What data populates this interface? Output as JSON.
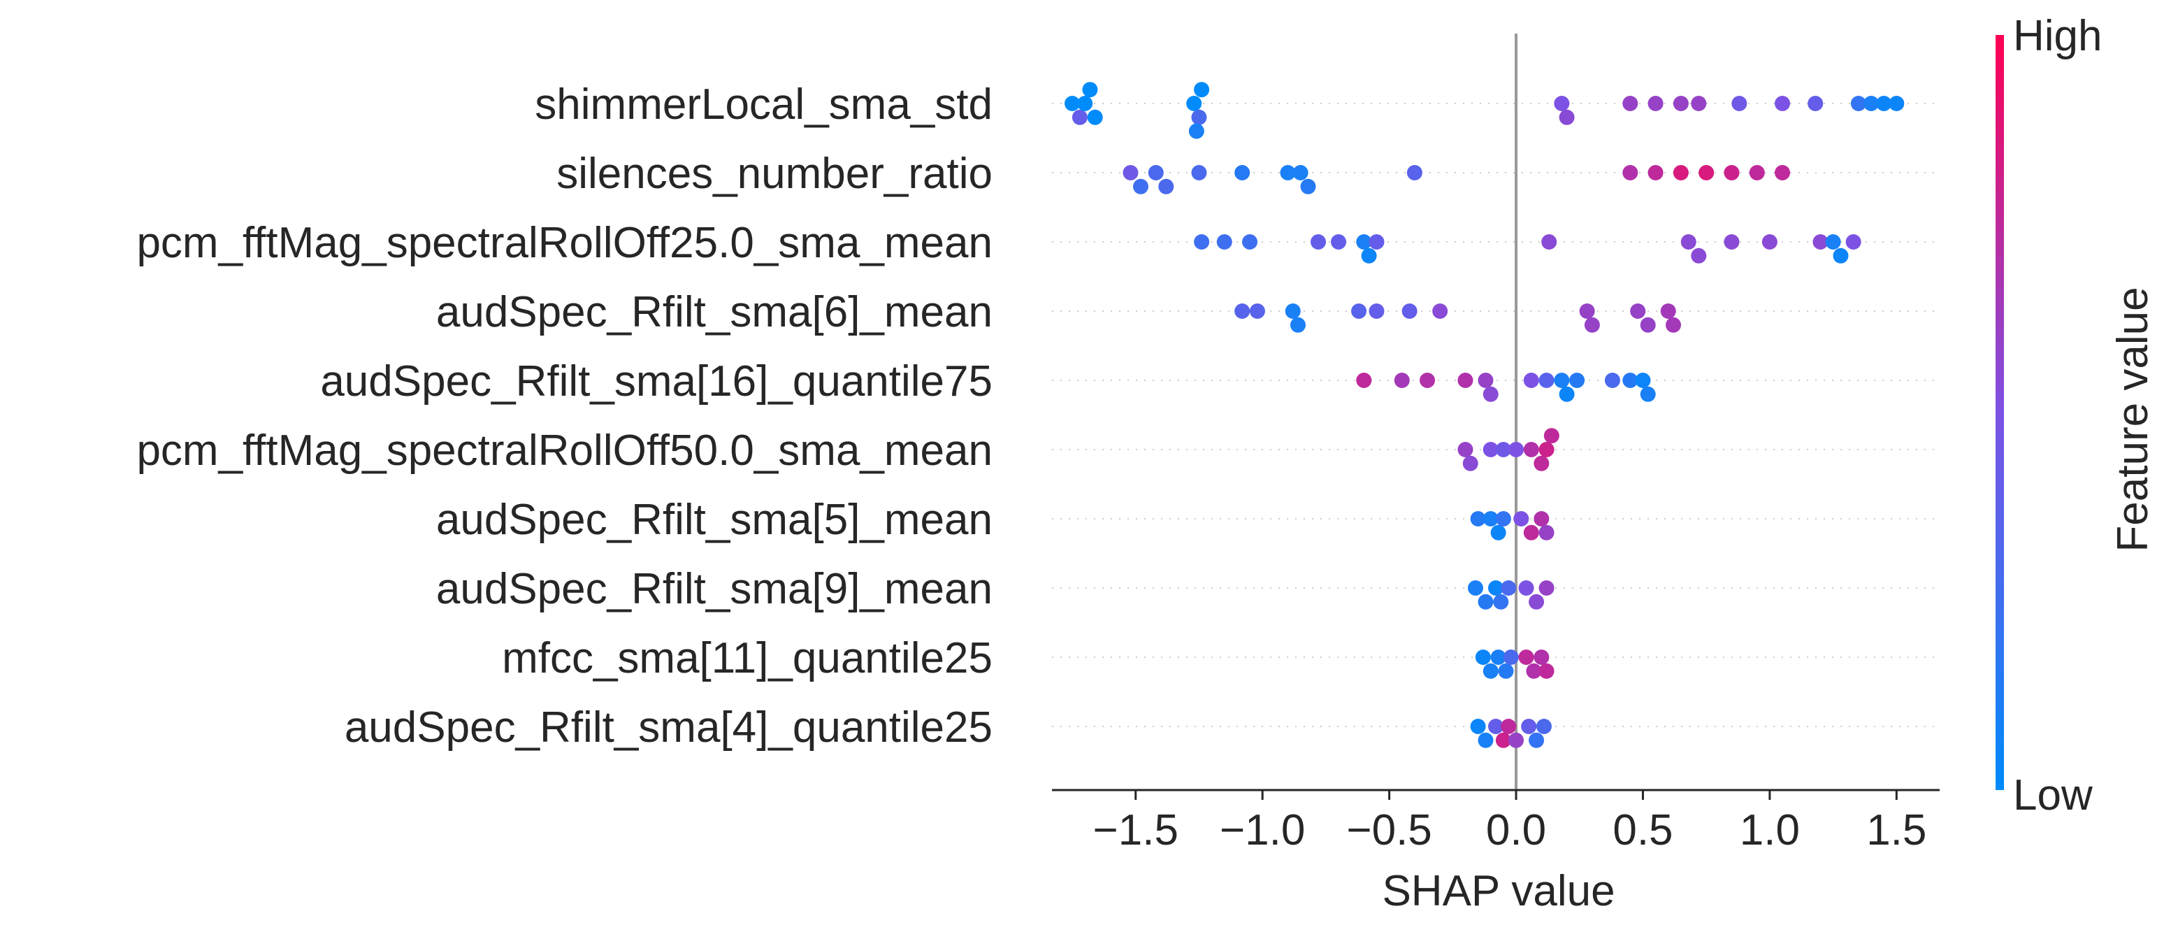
{
  "chart_data": {
    "type": "scatter",
    "subtype": "shap-beeswarm",
    "xlabel": "SHAP value",
    "xlim": [
      -1.83,
      1.67
    ],
    "xticks": [
      -1.5,
      -1.0,
      -0.5,
      0.0,
      0.5,
      1.0,
      1.5
    ],
    "xtick_labels": [
      "−1.5",
      "−1.0",
      "−0.5",
      "0.0",
      "0.5",
      "1.0",
      "1.5"
    ],
    "grid": false,
    "colorbar": {
      "label": "Feature value",
      "high_label": "High",
      "low_label": "Low",
      "high_color": "#ff0052",
      "low_color": "#008bfb"
    },
    "features": [
      {
        "name": "shimmerLocal_sma_std",
        "points": [
          [
            -1.75,
            0.0
          ],
          [
            -1.72,
            0.4
          ],
          [
            -1.7,
            0.0
          ],
          [
            -1.68,
            0.0
          ],
          [
            -1.66,
            0.0
          ],
          [
            -1.27,
            0.0
          ],
          [
            -1.25,
            0.3
          ],
          [
            -1.24,
            0.0
          ],
          [
            -1.26,
            0.1
          ],
          [
            0.18,
            0.5
          ],
          [
            0.2,
            0.55
          ],
          [
            0.45,
            0.6
          ],
          [
            0.55,
            0.6
          ],
          [
            0.65,
            0.6
          ],
          [
            0.72,
            0.6
          ],
          [
            0.88,
            0.45
          ],
          [
            1.05,
            0.5
          ],
          [
            1.18,
            0.4
          ],
          [
            1.35,
            0.2
          ],
          [
            1.4,
            0.1
          ],
          [
            1.45,
            0.05
          ],
          [
            1.5,
            0.05
          ]
        ]
      },
      {
        "name": "silences_number_ratio",
        "points": [
          [
            -1.52,
            0.45
          ],
          [
            -1.48,
            0.25
          ],
          [
            -1.42,
            0.3
          ],
          [
            -1.38,
            0.3
          ],
          [
            -1.25,
            0.3
          ],
          [
            -1.08,
            0.15
          ],
          [
            -0.9,
            0.1
          ],
          [
            -0.85,
            0.1
          ],
          [
            -0.82,
            0.15
          ],
          [
            -0.4,
            0.35
          ],
          [
            0.45,
            0.7
          ],
          [
            0.55,
            0.75
          ],
          [
            0.65,
            0.85
          ],
          [
            0.75,
            0.85
          ],
          [
            0.85,
            0.8
          ],
          [
            0.95,
            0.75
          ],
          [
            1.05,
            0.75
          ]
        ]
      },
      {
        "name": "pcm_fftMag_spectralRollOff25.0_sma_mean",
        "points": [
          [
            -1.24,
            0.25
          ],
          [
            -1.15,
            0.25
          ],
          [
            -1.05,
            0.25
          ],
          [
            -0.78,
            0.4
          ],
          [
            -0.7,
            0.4
          ],
          [
            -0.6,
            0.1
          ],
          [
            -0.58,
            0.05
          ],
          [
            -0.55,
            0.4
          ],
          [
            0.13,
            0.55
          ],
          [
            0.68,
            0.55
          ],
          [
            0.72,
            0.55
          ],
          [
            0.85,
            0.55
          ],
          [
            1.0,
            0.55
          ],
          [
            1.2,
            0.55
          ],
          [
            1.25,
            0.1
          ],
          [
            1.28,
            0.05
          ],
          [
            1.33,
            0.5
          ]
        ]
      },
      {
        "name": "audSpec_Rfilt_sma[6]_mean",
        "points": [
          [
            -1.08,
            0.35
          ],
          [
            -1.02,
            0.35
          ],
          [
            -0.88,
            0.1
          ],
          [
            -0.86,
            0.1
          ],
          [
            -0.62,
            0.35
          ],
          [
            -0.55,
            0.4
          ],
          [
            -0.42,
            0.4
          ],
          [
            -0.3,
            0.55
          ],
          [
            0.28,
            0.6
          ],
          [
            0.3,
            0.6
          ],
          [
            0.48,
            0.6
          ],
          [
            0.52,
            0.6
          ],
          [
            0.6,
            0.65
          ],
          [
            0.62,
            0.65
          ]
        ]
      },
      {
        "name": "audSpec_Rfilt_sma[16]_quantile75",
        "points": [
          [
            -0.6,
            0.75
          ],
          [
            -0.45,
            0.65
          ],
          [
            -0.35,
            0.7
          ],
          [
            -0.2,
            0.7
          ],
          [
            -0.12,
            0.6
          ],
          [
            -0.1,
            0.55
          ],
          [
            0.06,
            0.5
          ],
          [
            0.12,
            0.35
          ],
          [
            0.18,
            0.1
          ],
          [
            0.2,
            0.05
          ],
          [
            0.24,
            0.15
          ],
          [
            0.38,
            0.3
          ],
          [
            0.45,
            0.15
          ],
          [
            0.5,
            0.05
          ],
          [
            0.52,
            0.1
          ]
        ]
      },
      {
        "name": "pcm_fftMag_spectralRollOff50.0_sma_mean",
        "points": [
          [
            -0.2,
            0.6
          ],
          [
            -0.18,
            0.55
          ],
          [
            -0.1,
            0.5
          ],
          [
            -0.05,
            0.45
          ],
          [
            0.0,
            0.5
          ],
          [
            0.06,
            0.7
          ],
          [
            0.1,
            0.75
          ],
          [
            0.12,
            0.8
          ],
          [
            0.14,
            0.75
          ]
        ]
      },
      {
        "name": "audSpec_Rfilt_sma[5]_mean",
        "points": [
          [
            -0.15,
            0.15
          ],
          [
            -0.1,
            0.1
          ],
          [
            -0.07,
            0.05
          ],
          [
            -0.05,
            0.2
          ],
          [
            0.02,
            0.5
          ],
          [
            0.06,
            0.75
          ],
          [
            0.1,
            0.7
          ],
          [
            0.12,
            0.6
          ]
        ]
      },
      {
        "name": "audSpec_Rfilt_sma[9]_mean",
        "points": [
          [
            -0.16,
            0.1
          ],
          [
            -0.12,
            0.15
          ],
          [
            -0.08,
            0.05
          ],
          [
            -0.06,
            0.2
          ],
          [
            -0.03,
            0.3
          ],
          [
            0.04,
            0.5
          ],
          [
            0.08,
            0.55
          ],
          [
            0.12,
            0.6
          ]
        ]
      },
      {
        "name": "mfcc_sma[11]_quantile25",
        "points": [
          [
            -0.13,
            0.05
          ],
          [
            -0.1,
            0.1
          ],
          [
            -0.07,
            0.1
          ],
          [
            -0.04,
            0.15
          ],
          [
            -0.02,
            0.3
          ],
          [
            0.04,
            0.75
          ],
          [
            0.07,
            0.7
          ],
          [
            0.1,
            0.7
          ],
          [
            0.12,
            0.75
          ]
        ]
      },
      {
        "name": "audSpec_Rfilt_sma[4]_quantile25",
        "points": [
          [
            -0.15,
            0.05
          ],
          [
            -0.12,
            0.1
          ],
          [
            -0.08,
            0.4
          ],
          [
            -0.05,
            0.8
          ],
          [
            -0.03,
            0.75
          ],
          [
            0.0,
            0.6
          ],
          [
            0.05,
            0.4
          ],
          [
            0.08,
            0.2
          ],
          [
            0.11,
            0.3
          ]
        ]
      }
    ]
  }
}
